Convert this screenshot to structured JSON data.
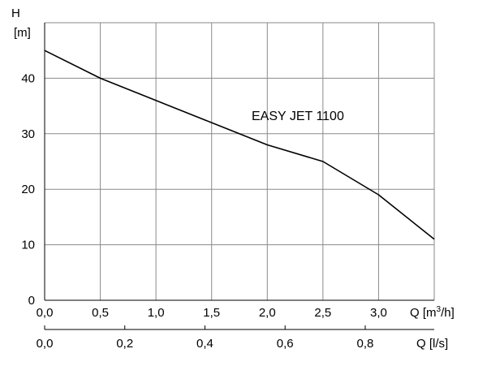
{
  "chart_data": {
    "type": "line",
    "y_label_line1": "H",
    "y_label_line2": "[m]",
    "x_label_primary_pre": "Q [m",
    "x_label_primary_sup": "3",
    "x_label_primary_post": "/h]",
    "x_label_secondary": "Q [l/s]",
    "x_range": [
      0,
      3.5
    ],
    "y_range": [
      0,
      50
    ],
    "y_ticks": [
      {
        "value": 0,
        "label": "0"
      },
      {
        "value": 10,
        "label": "10"
      },
      {
        "value": 20,
        "label": "20"
      },
      {
        "value": 30,
        "label": "30"
      },
      {
        "value": 40,
        "label": "40"
      }
    ],
    "x_ticks": [
      {
        "value": 0.0,
        "label": "0,0"
      },
      {
        "value": 0.5,
        "label": "0,5"
      },
      {
        "value": 1.0,
        "label": "1,0"
      },
      {
        "value": 1.5,
        "label": "1,5"
      },
      {
        "value": 2.0,
        "label": "2,0"
      },
      {
        "value": 2.5,
        "label": "2,5"
      },
      {
        "value": 3.0,
        "label": "3,0"
      }
    ],
    "x2_ticks": [
      {
        "value": 0.0,
        "label": "0,0"
      },
      {
        "value": 0.2,
        "label": "0,2"
      },
      {
        "value": 0.4,
        "label": "0,4"
      },
      {
        "value": 0.6,
        "label": "0,6"
      },
      {
        "value": 0.8,
        "label": "0,8"
      }
    ],
    "grid": true,
    "series": [
      {
        "annotation": "EASY JET 1100",
        "x": [
          0.0,
          0.5,
          1.0,
          1.5,
          2.0,
          2.5,
          3.0,
          3.5
        ],
        "y": [
          45,
          40,
          36,
          32,
          28,
          25,
          19,
          11
        ]
      }
    ]
  }
}
